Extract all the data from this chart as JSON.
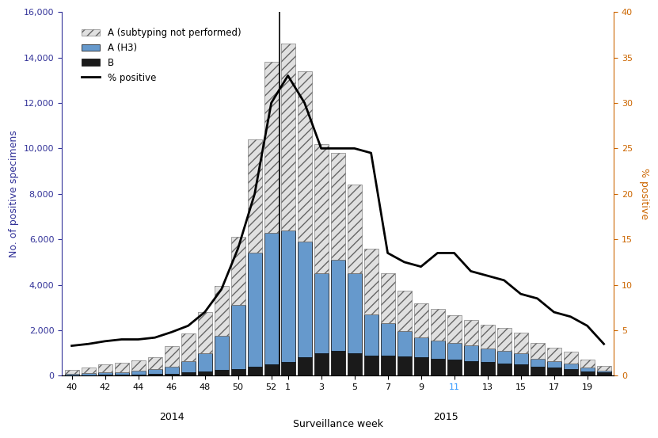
{
  "weeks_2014": [
    40,
    41,
    42,
    43,
    44,
    45,
    46,
    47,
    48,
    49,
    50,
    51,
    52
  ],
  "weeks_2015": [
    1,
    2,
    3,
    4,
    5,
    6,
    7,
    8,
    9,
    10,
    11,
    12,
    13,
    14,
    15,
    16,
    17,
    18,
    19,
    20
  ],
  "A_subtype_2014": [
    200,
    250,
    350,
    400,
    450,
    550,
    900,
    1200,
    1800,
    2200,
    3000,
    5000,
    7500
  ],
  "A_H3_2014": [
    50,
    80,
    100,
    120,
    150,
    200,
    300,
    500,
    800,
    1500,
    2800,
    5000,
    5800
  ],
  "B_2014": [
    20,
    30,
    40,
    50,
    60,
    80,
    100,
    150,
    200,
    250,
    300,
    400,
    500
  ],
  "A_subtype_2015": [
    8200,
    7500,
    5700,
    4700,
    3900,
    2900,
    2200,
    1800,
    1500,
    1400,
    1200,
    1100,
    1050,
    1000,
    900,
    700,
    600,
    500,
    350,
    200
  ],
  "A_H3_2015": [
    5800,
    5100,
    3500,
    4000,
    3500,
    1800,
    1400,
    1100,
    900,
    800,
    750,
    700,
    600,
    550,
    500,
    350,
    300,
    250,
    150,
    80
  ],
  "B_2015": [
    600,
    800,
    1000,
    1100,
    1000,
    900,
    900,
    850,
    800,
    750,
    700,
    650,
    600,
    550,
    500,
    400,
    350,
    300,
    200,
    150
  ],
  "pct_positive_2014": [
    3.3,
    3.5,
    3.8,
    4.0,
    4.0,
    4.2,
    4.8,
    5.5,
    7.0,
    9.5,
    14.0,
    20.0,
    30.0
  ],
  "pct_positive_2015": [
    33.0,
    30.0,
    25.0,
    25.0,
    25.0,
    24.5,
    13.5,
    12.5,
    12.0,
    13.5,
    13.5,
    11.5,
    11.0,
    10.5,
    9.0,
    8.5,
    7.0,
    6.5,
    5.5,
    3.5
  ],
  "color_A_subtype": "#e0e0e0",
  "color_A_H3": "#6699cc",
  "color_B": "#1a1a1a",
  "color_line": "#000000",
  "ylabel_left": "No. of positive specimens",
  "ylabel_right": "% positive",
  "xlabel": "Surveillance week",
  "ylim_left": [
    0,
    16000
  ],
  "ylim_right": [
    0,
    40
  ],
  "yticks_left": [
    0,
    2000,
    4000,
    6000,
    8000,
    10000,
    12000,
    14000,
    16000
  ],
  "yticks_right": [
    0,
    5,
    10,
    15,
    20,
    25,
    30,
    35,
    40
  ],
  "legend_labels": [
    "A (subtyping not performed)",
    "A (H3)",
    "B",
    "% positive"
  ],
  "background_color": "#ffffff",
  "left_axis_color": "#333399",
  "right_axis_color": "#cc6600"
}
